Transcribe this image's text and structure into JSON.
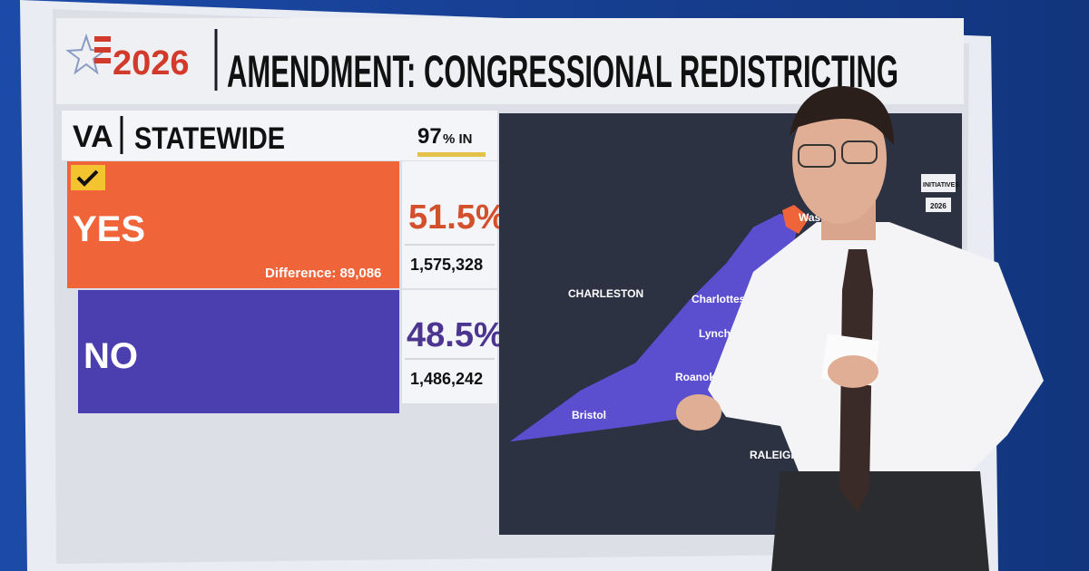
{
  "header": {
    "year": "2026",
    "title": "AMENDMENT: CONGRESSIONAL REDISTRICTING"
  },
  "race": {
    "state": "VA",
    "scope": "STATEWIDE",
    "reporting_pct": "97",
    "reporting_label": "% IN"
  },
  "results": [
    {
      "label": "YES",
      "percent": "51.5%",
      "votes": "1,575,328",
      "note": "Difference: 89,086"
    },
    {
      "label": "NO",
      "percent": "48.5%",
      "votes": "1,486,242"
    }
  ],
  "map": {
    "labels": [
      "CHARLESTON",
      "Charlottesvil",
      "Lynch",
      "Roanoke",
      "Bristol",
      "RALEIGH",
      "Wash"
    ]
  },
  "sidebar": {
    "tab": "INITIATIVES",
    "year": "2026"
  }
}
